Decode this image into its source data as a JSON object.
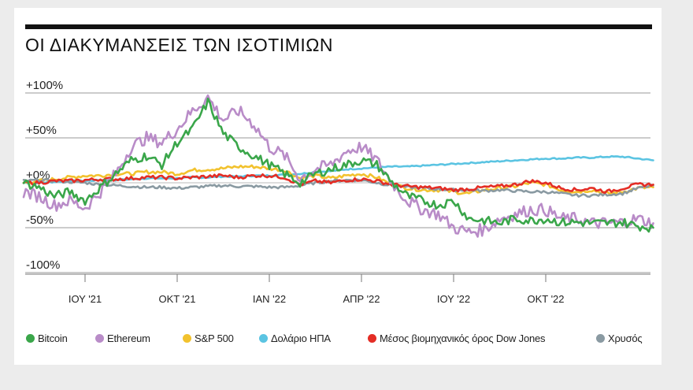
{
  "title": "ΟΙ ΔΙΑΚΥΜΑΝΣΕΙΣ ΤΩΝ ΙΣΟΤΙΜΙΩΝ",
  "chart_data": {
    "type": "line",
    "title": "ΟΙ ΔΙΑΚΥΜΑΝΣΕΙΣ ΤΩΝ ΙΣΟΤΙΜΙΩΝ",
    "xlabel": "",
    "ylabel": "",
    "ylim": [
      -100,
      100
    ],
    "yticks": [
      {
        "value": 100,
        "label": "+100%"
      },
      {
        "value": 50,
        "label": "+50%"
      },
      {
        "value": 0,
        "label": "+0%"
      },
      {
        "value": -50,
        "label": "-50%"
      },
      {
        "value": -100,
        "label": "-100%"
      }
    ],
    "x_range_months": [
      0,
      20.5
    ],
    "xticks": [
      {
        "month": 2,
        "label": "ΙΟΥ '21"
      },
      {
        "month": 5,
        "label": "ΟΚΤ '21"
      },
      {
        "month": 8,
        "label": "ΙΑΝ '22"
      },
      {
        "month": 11,
        "label": "ΑΠΡ '22"
      },
      {
        "month": 14,
        "label": "ΙΟΥ '22"
      },
      {
        "month": 17,
        "label": "ΟΚΤ '22"
      }
    ],
    "series": [
      {
        "name": "Bitcoin",
        "color": "#3aa64a",
        "x": [
          0,
          0.5,
          1,
          1.5,
          2,
          2.5,
          3,
          3.5,
          4,
          4.5,
          5,
          5.5,
          6,
          6.5,
          7,
          7.5,
          8,
          8.5,
          9,
          9.5,
          10,
          10.5,
          11,
          11.5,
          12,
          12.5,
          13,
          13.5,
          14,
          14.5,
          15,
          15.5,
          16,
          16.5,
          17,
          17.5,
          18,
          18.5,
          19,
          19.5,
          20,
          20.5
        ],
        "values": [
          0,
          -5,
          -15,
          -10,
          -20,
          -5,
          10,
          25,
          30,
          20,
          45,
          60,
          90,
          55,
          40,
          30,
          20,
          10,
          0,
          10,
          15,
          20,
          25,
          20,
          0,
          -15,
          -20,
          -25,
          -20,
          -40,
          -42,
          -45,
          -40,
          -42,
          -40,
          -44,
          -44,
          -45,
          -45,
          -44,
          -48,
          -50
        ]
      },
      {
        "name": "Ethereum",
        "color": "#b98cc8",
        "x": [
          0,
          0.5,
          1,
          1.5,
          2,
          2.5,
          3,
          3.5,
          4,
          4.5,
          5,
          5.5,
          6,
          6.5,
          7,
          7.5,
          8,
          8.5,
          9,
          9.5,
          10,
          10.5,
          11,
          11.5,
          12,
          12.5,
          13,
          13.5,
          14,
          14.5,
          15,
          15.5,
          16,
          16.5,
          17,
          17.5,
          18,
          18.5,
          19,
          19.5,
          20,
          20.5
        ],
        "values": [
          -10,
          -15,
          -25,
          -20,
          -28,
          -10,
          10,
          40,
          50,
          45,
          60,
          80,
          95,
          70,
          80,
          65,
          40,
          30,
          5,
          15,
          20,
          35,
          40,
          25,
          0,
          -20,
          -30,
          -35,
          -50,
          -55,
          -52,
          -40,
          -35,
          -30,
          -30,
          -40,
          -40,
          -45,
          -45,
          -44,
          -40,
          -45
        ]
      },
      {
        "name": "S&P 500",
        "color": "#f2c22e",
        "x": [
          0,
          0.5,
          1,
          1.5,
          2,
          2.5,
          3,
          3.5,
          4,
          4.5,
          5,
          5.5,
          6,
          6.5,
          7,
          7.5,
          8,
          8.5,
          9,
          9.5,
          10,
          10.5,
          11,
          11.5,
          12,
          12.5,
          13,
          13.5,
          14,
          14.5,
          15,
          15.5,
          16,
          16.5,
          17,
          17.5,
          18,
          18.5,
          19,
          19.5,
          20,
          20.5
        ],
        "values": [
          0,
          2,
          4,
          6,
          8,
          8,
          10,
          10,
          12,
          12,
          10,
          14,
          15,
          16,
          18,
          18,
          16,
          14,
          5,
          8,
          5,
          8,
          10,
          6,
          -2,
          -6,
          -8,
          -8,
          -10,
          -12,
          -8,
          -6,
          -4,
          0,
          -2,
          -8,
          -10,
          -8,
          -12,
          -10,
          -6,
          -5
        ]
      },
      {
        "name": "Δολάριο ΗΠΑ",
        "color": "#5bc4e2",
        "x": [
          0,
          0.5,
          1,
          1.5,
          2,
          2.5,
          3,
          3.5,
          4,
          4.5,
          5,
          5.5,
          6,
          6.5,
          7,
          7.5,
          8,
          8.5,
          9,
          9.5,
          10,
          10.5,
          11,
          11.5,
          12,
          12.5,
          13,
          13.5,
          14,
          14.5,
          15,
          15.5,
          16,
          16.5,
          17,
          17.5,
          18,
          18.5,
          19,
          19.5,
          20,
          20.5
        ],
        "values": [
          0,
          0,
          1,
          2,
          2,
          3,
          3,
          4,
          5,
          5,
          5,
          6,
          6,
          7,
          7,
          8,
          8,
          9,
          10,
          12,
          13,
          15,
          16,
          17,
          18,
          18,
          19,
          20,
          21,
          22,
          23,
          24,
          25,
          26,
          27,
          27,
          28,
          28,
          29,
          29,
          27,
          25
        ]
      },
      {
        "name": "Μέσος βιομηχανικός όρος Dow Jones",
        "color": "#e42d25",
        "x": [
          0,
          0.5,
          1,
          1.5,
          2,
          2.5,
          3,
          3.5,
          4,
          4.5,
          5,
          5.5,
          6,
          6.5,
          7,
          7.5,
          8,
          8.5,
          9,
          9.5,
          10,
          10.5,
          11,
          11.5,
          12,
          12.5,
          13,
          13.5,
          14,
          14.5,
          15,
          15.5,
          16,
          16.5,
          17,
          17.5,
          18,
          18.5,
          19,
          19.5,
          20,
          20.5
        ],
        "values": [
          0,
          0,
          2,
          2,
          3,
          4,
          4,
          5,
          6,
          6,
          5,
          6,
          7,
          8,
          6,
          8,
          8,
          6,
          -2,
          2,
          0,
          3,
          4,
          2,
          -2,
          -4,
          -5,
          -6,
          -8,
          -7,
          -5,
          -4,
          -2,
          2,
          0,
          -6,
          -8,
          -6,
          -10,
          -6,
          -2,
          -2
        ]
      },
      {
        "name": "Χρυσός",
        "color": "#8a9aa2",
        "x": [
          0,
          0.5,
          1,
          1.5,
          2,
          2.5,
          3,
          3.5,
          4,
          4.5,
          5,
          5.5,
          6,
          6.5,
          7,
          7.5,
          8,
          8.5,
          9,
          9.5,
          10,
          10.5,
          11,
          11.5,
          12,
          12.5,
          13,
          13.5,
          14,
          14.5,
          15,
          15.5,
          16,
          16.5,
          17,
          17.5,
          18,
          18.5,
          19,
          19.5,
          20,
          20.5
        ],
        "values": [
          2,
          3,
          2,
          1,
          0,
          -2,
          -3,
          -4,
          -5,
          -5,
          -6,
          -5,
          -4,
          -3,
          -4,
          -4,
          -5,
          -5,
          -3,
          0,
          2,
          3,
          3,
          0,
          -3,
          -5,
          -6,
          -7,
          -8,
          -8,
          -9,
          -8,
          -9,
          -10,
          -10,
          -12,
          -14,
          -14,
          -13,
          -12,
          -6,
          -3
        ]
      }
    ]
  }
}
